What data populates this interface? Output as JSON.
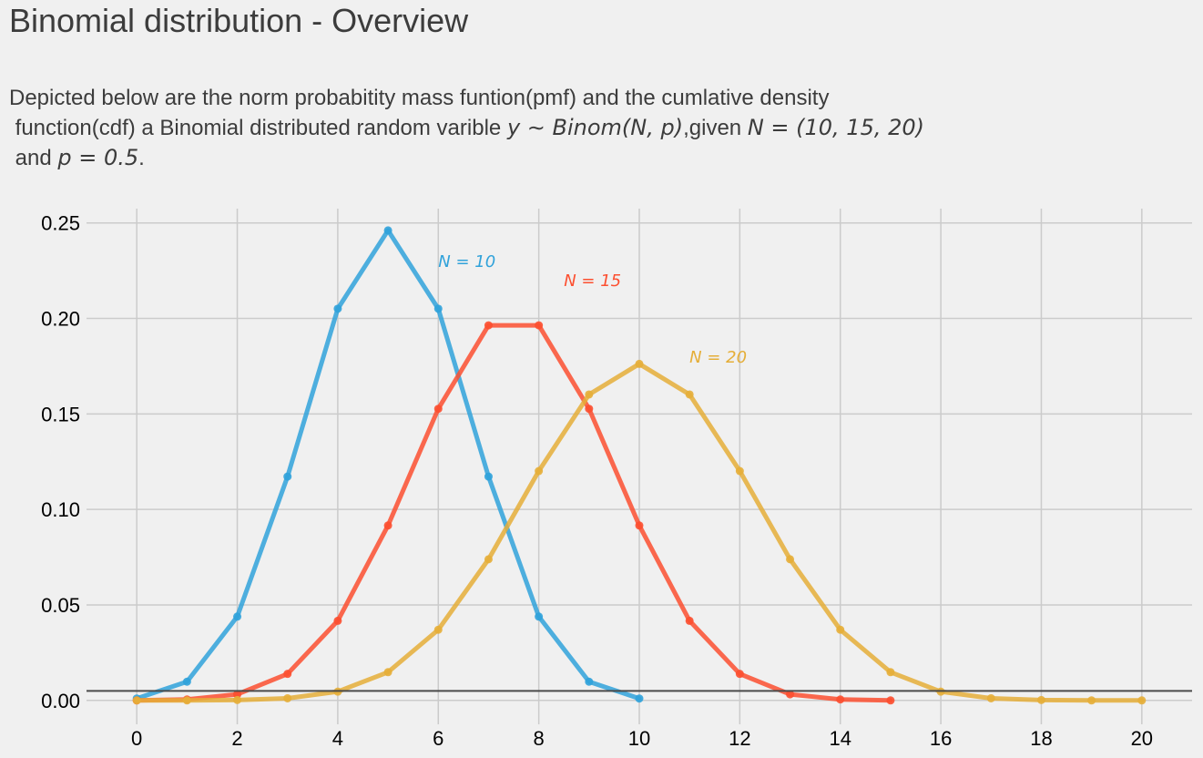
{
  "chart_data": {
    "type": "line",
    "title": "Binomial distribution - Overview",
    "subtitle": {
      "line1": "Depicted below are the norm probabitity mass funtion(pmf) and the cumlative density",
      "line2_prefix": " function(cdf) a Binomial distributed random varible ",
      "line2_math1": "y ∼ Binom(N, p)",
      "line2_mid": ",given ",
      "line2_math2": "N = (10, 15, 20)",
      "line3_prefix": " and ",
      "line3_math": "p = 0.5",
      "line3_suffix": "."
    },
    "xlabel": "",
    "ylabel": "",
    "xlim": [
      -1,
      21
    ],
    "ylim": [
      -0.0125,
      0.2575
    ],
    "xticks": [
      0,
      2,
      4,
      6,
      8,
      10,
      12,
      14,
      16,
      18,
      20
    ],
    "yticks": [
      0.0,
      0.05,
      0.1,
      0.15,
      0.2,
      0.25
    ],
    "ytick_labels": [
      "0.00",
      "0.05",
      "0.10",
      "0.15",
      "0.20",
      "0.25"
    ],
    "grid": true,
    "hline": 0.005,
    "series": [
      {
        "name": "N = 10",
        "color": "#30a2da",
        "x": [
          0,
          1,
          2,
          3,
          4,
          5,
          6,
          7,
          8,
          9,
          10
        ],
        "values": [
          0.001,
          0.0098,
          0.0439,
          0.1172,
          0.2051,
          0.2461,
          0.2051,
          0.1172,
          0.0439,
          0.0098,
          0.001
        ],
        "label_at": [
          6,
          0.227
        ]
      },
      {
        "name": "N = 15",
        "color": "#fc4f30",
        "x": [
          0,
          1,
          2,
          3,
          4,
          5,
          6,
          7,
          8,
          9,
          10,
          11,
          12,
          13,
          14,
          15
        ],
        "values": [
          0.0,
          0.0005,
          0.0032,
          0.0139,
          0.0417,
          0.0916,
          0.1527,
          0.1964,
          0.1964,
          0.1527,
          0.0916,
          0.0417,
          0.0139,
          0.0032,
          0.0005,
          0.0
        ],
        "label_at": [
          8.5,
          0.217
        ]
      },
      {
        "name": "N = 20",
        "color": "#e5ae38",
        "x": [
          0,
          1,
          2,
          3,
          4,
          5,
          6,
          7,
          8,
          9,
          10,
          11,
          12,
          13,
          14,
          15,
          16,
          17,
          18,
          19,
          20
        ],
        "values": [
          0.0,
          0.0,
          0.0002,
          0.0011,
          0.0046,
          0.0148,
          0.037,
          0.0739,
          0.1201,
          0.1602,
          0.1762,
          0.1602,
          0.1201,
          0.0739,
          0.037,
          0.0148,
          0.0046,
          0.0011,
          0.0002,
          0.0,
          0.0
        ],
        "label_at": [
          11,
          0.177
        ]
      }
    ]
  }
}
